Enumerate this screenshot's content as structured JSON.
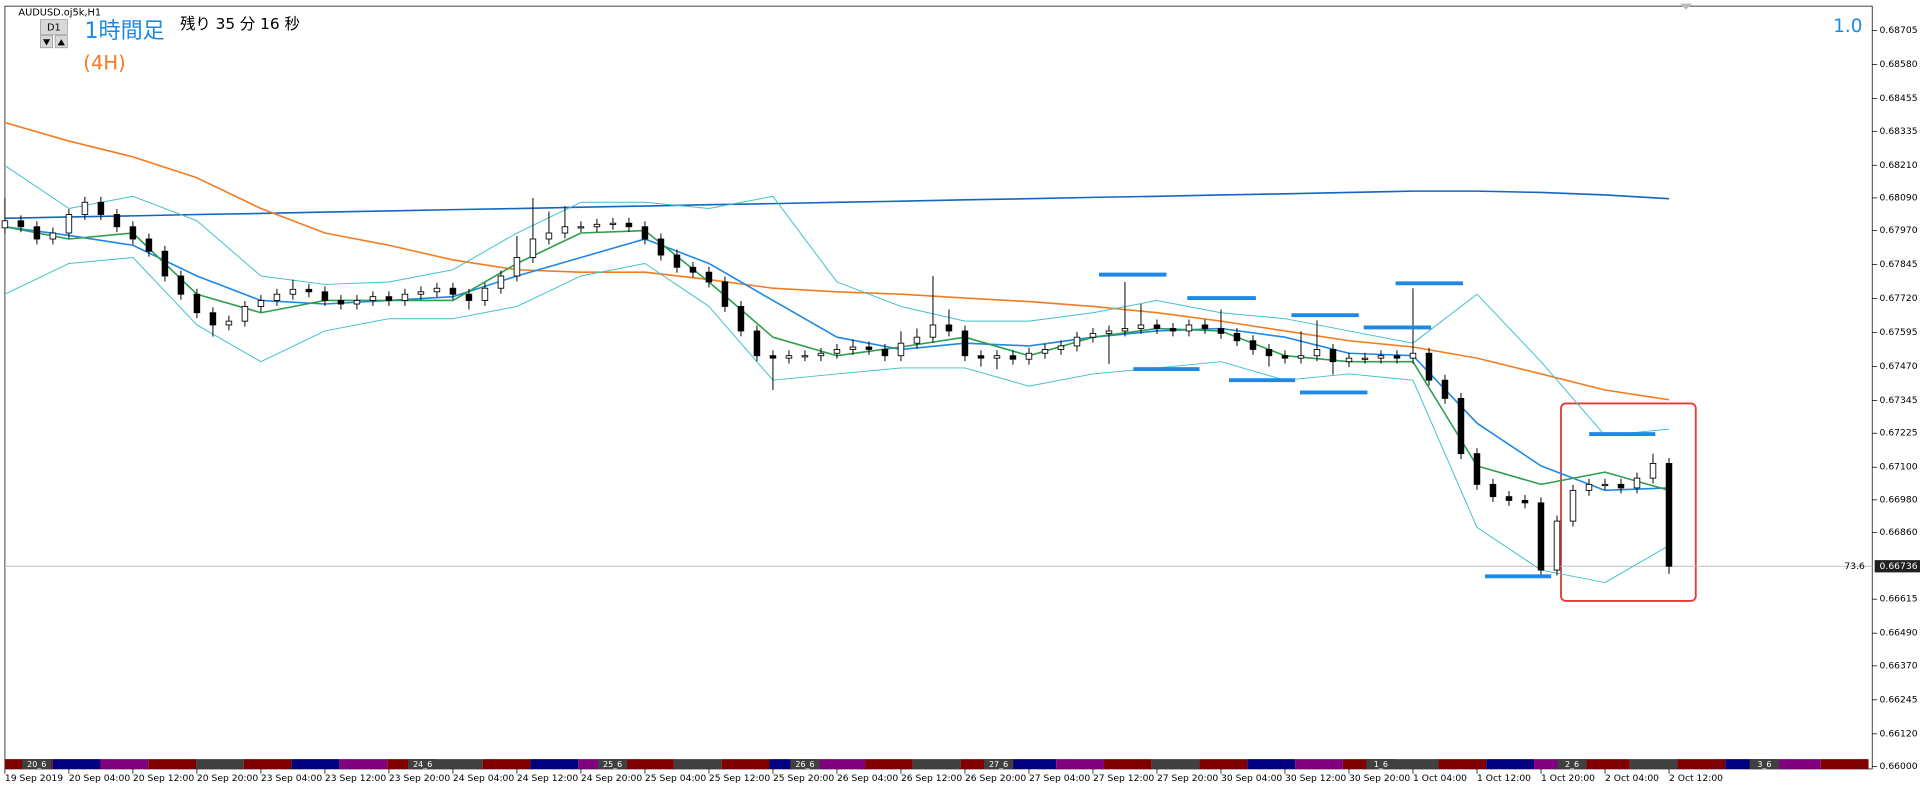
{
  "chart_data": {
    "type": "candlestick",
    "title": "AUDUSD.oj5k,H1",
    "timeframe_button": "D1",
    "label_main": "1時間足",
    "label_sub": "(4H)",
    "countdown": "残り 35 分 16 秒",
    "indicator_value": "1.0",
    "price_marker": 73.6,
    "current_price": {
      "value": 0.66736,
      "label": "0.66736"
    },
    "ylim": [
      0.65991,
      0.68795
    ],
    "yticks": [
      {
        "value": 0.68705,
        "label": "0.68705"
      },
      {
        "value": 0.6858,
        "label": "0.68580"
      },
      {
        "value": 0.68455,
        "label": "0.68455"
      },
      {
        "value": 0.68335,
        "label": "0.68335"
      },
      {
        "value": 0.6821,
        "label": "0.68210"
      },
      {
        "value": 0.6809,
        "label": "0.68090"
      },
      {
        "value": 0.6797,
        "label": "0.67970"
      },
      {
        "value": 0.67845,
        "label": "0.67845"
      },
      {
        "value": 0.6772,
        "label": "0.67720"
      },
      {
        "value": 0.67595,
        "label": "0.67595"
      },
      {
        "value": 0.6747,
        "label": "0.67470"
      },
      {
        "value": 0.67345,
        "label": "0.67345"
      },
      {
        "value": 0.67225,
        "label": "0.67225"
      },
      {
        "value": 0.671,
        "label": "0.67100"
      },
      {
        "value": 0.6698,
        "label": "0.66980"
      },
      {
        "value": 0.6686,
        "label": "0.66860"
      },
      {
        "value": 0.66615,
        "label": "0.66615"
      },
      {
        "value": 0.6649,
        "label": "0.66490"
      },
      {
        "value": 0.6637,
        "label": "0.66370"
      },
      {
        "value": 0.66245,
        "label": "0.66245"
      },
      {
        "value": 0.6612,
        "label": "0.66120"
      },
      {
        "value": 0.66,
        "label": "0.66000"
      }
    ],
    "xlim": [
      0,
      116.7
    ],
    "xticks": [
      {
        "value": 0,
        "label": "19 Sep 2019"
      },
      {
        "value": 4,
        "label": "20 Sep 04:00"
      },
      {
        "value": 8,
        "label": "20 Sep 12:00"
      },
      {
        "value": 12,
        "label": "20 Sep 20:00"
      },
      {
        "value": 16,
        "label": "23 Sep 04:00"
      },
      {
        "value": 20,
        "label": "23 Sep 12:00"
      },
      {
        "value": 24,
        "label": "23 Sep 20:00"
      },
      {
        "value": 28,
        "label": "24 Sep 04:00"
      },
      {
        "value": 32,
        "label": "24 Sep 12:00"
      },
      {
        "value": 36,
        "label": "24 Sep 20:00"
      },
      {
        "value": 40,
        "label": "25 Sep 04:00"
      },
      {
        "value": 44,
        "label": "25 Sep 12:00"
      },
      {
        "value": 48,
        "label": "25 Sep 20:00"
      },
      {
        "value": 52,
        "label": "26 Sep 04:00"
      },
      {
        "value": 56,
        "label": "26 Sep 12:00"
      },
      {
        "value": 60,
        "label": "26 Sep 20:00"
      },
      {
        "value": 64,
        "label": "27 Sep 04:00"
      },
      {
        "value": 68,
        "label": "27 Sep 12:00"
      },
      {
        "value": 72,
        "label": "27 Sep 20:00"
      },
      {
        "value": 76,
        "label": "30 Sep 04:00"
      },
      {
        "value": 80,
        "label": "30 Sep 12:00"
      },
      {
        "value": 84,
        "label": "30 Sep 20:00"
      },
      {
        "value": 88,
        "label": "1 Oct 04:00"
      },
      {
        "value": 92,
        "label": "1 Oct 12:00"
      },
      {
        "value": 96,
        "label": "1 Oct 20:00"
      },
      {
        "value": 100,
        "label": "2 Oct 04:00"
      },
      {
        "value": 104,
        "label": "2 Oct 12:00"
      }
    ],
    "candles": {
      "open": [
        0.6798,
        0.68006,
        0.67984,
        0.67939,
        0.67961,
        0.68029,
        0.68074,
        0.68029,
        0.67984,
        0.67939,
        0.67894,
        0.67803,
        0.67736,
        0.67668,
        0.67623,
        0.67637,
        0.67691,
        0.67713,
        0.67736,
        0.67754,
        0.67745,
        0.67713,
        0.677,
        0.67713,
        0.67727,
        0.67713,
        0.67736,
        0.67745,
        0.67758,
        0.67736,
        0.67713,
        0.67758,
        0.67803,
        0.67871,
        0.67939,
        0.67961,
        0.67984,
        0.67984,
        0.67993,
        0.67997,
        0.67984,
        0.67939,
        0.6788,
        0.67835,
        0.67817,
        0.67781,
        0.67691,
        0.67601,
        0.6751,
        0.67501,
        0.6751,
        0.6751,
        0.67519,
        0.67533,
        0.67542,
        0.67533,
        0.6751,
        0.67556,
        0.67578,
        0.67623,
        0.67601,
        0.6751,
        0.67501,
        0.6751,
        0.67497,
        0.67519,
        0.67533,
        0.67546,
        0.67578,
        0.67592,
        0.67601,
        0.6761,
        0.67623,
        0.6761,
        0.67601,
        0.67623,
        0.6761,
        0.67592,
        0.67565,
        0.67533,
        0.6751,
        0.67501,
        0.6751,
        0.67533,
        0.67488,
        0.67501,
        0.67501,
        0.6751,
        0.67501,
        0.67519,
        0.6742,
        0.67353,
        0.6715,
        0.67037,
        0.66992,
        0.66978,
        0.66969,
        0.66722,
        0.66902,
        0.67015,
        0.67037,
        0.67037,
        0.67024,
        0.6706,
        0.67114
      ],
      "high": [
        0.6809,
        0.68026,
        0.68004,
        0.67981,
        0.68049,
        0.68094,
        0.68094,
        0.68049,
        0.68004,
        0.67959,
        0.67914,
        0.67823,
        0.67756,
        0.67688,
        0.67657,
        0.67711,
        0.67733,
        0.67756,
        0.6779,
        0.67774,
        0.67765,
        0.67733,
        0.67733,
        0.67747,
        0.67747,
        0.67756,
        0.67765,
        0.67778,
        0.67778,
        0.67756,
        0.67778,
        0.67823,
        0.6795,
        0.6809,
        0.6804,
        0.6806,
        0.68004,
        0.68013,
        0.68017,
        0.68017,
        0.68004,
        0.67959,
        0.679,
        0.67855,
        0.67837,
        0.67801,
        0.67711,
        0.67621,
        0.6753,
        0.6753,
        0.6753,
        0.67539,
        0.67553,
        0.6757,
        0.67562,
        0.67553,
        0.676,
        0.6761,
        0.67803,
        0.6768,
        0.67621,
        0.6753,
        0.6753,
        0.6753,
        0.67539,
        0.67553,
        0.67566,
        0.67598,
        0.67612,
        0.67621,
        0.67781,
        0.677,
        0.67643,
        0.6763,
        0.67643,
        0.67643,
        0.6768,
        0.67612,
        0.67585,
        0.67553,
        0.6753,
        0.676,
        0.6764,
        0.67553,
        0.67521,
        0.67521,
        0.6753,
        0.6753,
        0.67758,
        0.67539,
        0.6744,
        0.67373,
        0.6717,
        0.67057,
        0.67012,
        0.66998,
        0.66989,
        0.66922,
        0.67035,
        0.67057,
        0.67057,
        0.67057,
        0.6708,
        0.6715,
        0.67134
      ],
      "low": [
        0.6796,
        0.67964,
        0.67919,
        0.67919,
        0.67941,
        0.68009,
        0.68009,
        0.67964,
        0.67919,
        0.67874,
        0.67783,
        0.67716,
        0.67648,
        0.6758,
        0.67603,
        0.67617,
        0.67671,
        0.67693,
        0.67716,
        0.67725,
        0.67693,
        0.6768,
        0.6768,
        0.67693,
        0.67693,
        0.67693,
        0.67716,
        0.67725,
        0.67716,
        0.6768,
        0.67693,
        0.67738,
        0.67783,
        0.67851,
        0.67919,
        0.67941,
        0.67964,
        0.67964,
        0.67973,
        0.67964,
        0.67919,
        0.6786,
        0.67815,
        0.67797,
        0.67761,
        0.67671,
        0.67581,
        0.6749,
        0.67384,
        0.67481,
        0.6749,
        0.6749,
        0.67499,
        0.67513,
        0.67513,
        0.6749,
        0.6749,
        0.67536,
        0.67558,
        0.67581,
        0.6749,
        0.6747,
        0.6746,
        0.67477,
        0.67477,
        0.67499,
        0.67513,
        0.67526,
        0.67558,
        0.6748,
        0.67581,
        0.6759,
        0.6759,
        0.67581,
        0.67581,
        0.6759,
        0.67572,
        0.67545,
        0.67513,
        0.6747,
        0.67481,
        0.67481,
        0.6749,
        0.6744,
        0.67468,
        0.67481,
        0.67481,
        0.67481,
        0.67481,
        0.674,
        0.67333,
        0.6713,
        0.67017,
        0.66972,
        0.66958,
        0.66949,
        0.667,
        0.66702,
        0.66882,
        0.66995,
        0.67017,
        0.67004,
        0.67004,
        0.6704,
        0.66708
      ],
      "close": [
        0.68006,
        0.67984,
        0.67939,
        0.67961,
        0.68029,
        0.68074,
        0.68029,
        0.67984,
        0.67939,
        0.67894,
        0.67803,
        0.67736,
        0.67668,
        0.67623,
        0.67637,
        0.67691,
        0.67713,
        0.67736,
        0.67754,
        0.67745,
        0.67713,
        0.677,
        0.67713,
        0.67727,
        0.67713,
        0.67736,
        0.67745,
        0.67758,
        0.67736,
        0.67713,
        0.67758,
        0.67803,
        0.67871,
        0.67939,
        0.67961,
        0.67984,
        0.67984,
        0.67993,
        0.67997,
        0.67984,
        0.67939,
        0.6788,
        0.67835,
        0.67817,
        0.67781,
        0.67691,
        0.67601,
        0.6751,
        0.67501,
        0.6751,
        0.6751,
        0.67519,
        0.67533,
        0.67542,
        0.67533,
        0.6751,
        0.67556,
        0.67578,
        0.67623,
        0.67601,
        0.6751,
        0.67501,
        0.6751,
        0.67497,
        0.67519,
        0.67533,
        0.67546,
        0.67578,
        0.67592,
        0.67601,
        0.6761,
        0.67623,
        0.6761,
        0.67601,
        0.67623,
        0.6761,
        0.67592,
        0.67565,
        0.67533,
        0.6751,
        0.67501,
        0.6751,
        0.67533,
        0.67488,
        0.67501,
        0.67501,
        0.6751,
        0.67501,
        0.67519,
        0.6742,
        0.67353,
        0.6715,
        0.67037,
        0.66992,
        0.66978,
        0.66969,
        0.66722,
        0.66902,
        0.67015,
        0.67037,
        0.67037,
        0.67024,
        0.6706,
        0.67114,
        0.66736
      ],
      "up_color": "#ffffff",
      "down_color": "#000000"
    },
    "series": [
      {
        "color": "#1565c0",
        "values": [
          0.68015,
          0.6802,
          0.68024,
          0.68029,
          0.68033,
          0.68038,
          0.68042,
          0.68047,
          0.68051,
          0.68056,
          0.6806,
          0.68065,
          0.68069,
          0.68074,
          0.68078,
          0.68083,
          0.68087,
          0.68092,
          0.68096,
          0.68101,
          0.68105,
          0.6811,
          0.68115,
          0.68115,
          0.6811,
          0.68101,
          0.68087
        ]
      },
      {
        "color": "#f47c20",
        "values": [
          0.68367,
          0.68299,
          0.68241,
          0.68164,
          0.68051,
          0.67961,
          0.67916,
          0.67862,
          0.67826,
          0.67817,
          0.67817,
          0.6779,
          0.67758,
          0.67745,
          0.67736,
          0.67722,
          0.67709,
          0.67691,
          0.67668,
          0.67637,
          0.67601,
          0.67565,
          0.67542,
          0.67501,
          0.67443,
          0.67384,
          0.67348
        ]
      },
      {
        "color": "#1e88e5",
        "values": [
          0.67984,
          0.67952,
          0.67916,
          0.67803,
          0.67713,
          0.677,
          0.67713,
          0.67727,
          0.67803,
          0.67871,
          0.67939,
          0.67849,
          0.67713,
          0.67578,
          0.67533,
          0.67556,
          0.67546,
          0.67578,
          0.67601,
          0.6761,
          0.67578,
          0.67519,
          0.6751,
          0.67262,
          0.67105,
          0.67015,
          0.67024
        ]
      },
      {
        "color": "#2e9e4f",
        "values": [
          0.67984,
          0.67939,
          0.67961,
          0.67736,
          0.67668,
          0.67713,
          0.67713,
          0.67713,
          0.67849,
          0.67961,
          0.6797,
          0.67781,
          0.67578,
          0.6751,
          0.67542,
          0.67578,
          0.6751,
          0.67578,
          0.6761,
          0.67601,
          0.6751,
          0.67488,
          0.67488,
          0.67105,
          0.67037,
          0.67082,
          0.67015
        ]
      },
      {
        "color": "#3fc1c9",
        "values": [
          0.68209,
          0.68051,
          0.68096,
          0.68006,
          0.67803,
          0.67772,
          0.67781,
          0.67826,
          0.67961,
          0.68074,
          0.68074,
          0.68051,
          0.68096,
          0.67781,
          0.67691,
          0.67637,
          0.67637,
          0.67668,
          0.67713,
          0.67668,
          0.67646,
          0.67601,
          0.67556,
          0.67736,
          0.67488,
          0.67217,
          0.6724
        ]
      },
      {
        "color": "#3fc1c9",
        "values": [
          0.67736,
          0.67849,
          0.67871,
          0.67623,
          0.67488,
          0.67601,
          0.67646,
          0.67646,
          0.67691,
          0.67803,
          0.67849,
          0.67691,
          0.6742,
          0.67443,
          0.67465,
          0.67465,
          0.67398,
          0.67443,
          0.67465,
          0.67488,
          0.6742,
          0.67443,
          0.6742,
          0.66879,
          0.66722,
          0.66676,
          0.66812
        ]
      }
    ],
    "levels": [
      0.67808,
      0.67461,
      0.67722,
      0.6742,
      0.67659,
      0.67375,
      0.67614,
      0.67776,
      0.66699,
      0.67222
    ],
    "level_color": "#1e88e5",
    "session_labels": [
      "20_6",
      "24_6",
      "25_6",
      "26_6",
      "27_6",
      "1_6",
      "2_6",
      "3_6"
    ]
  }
}
